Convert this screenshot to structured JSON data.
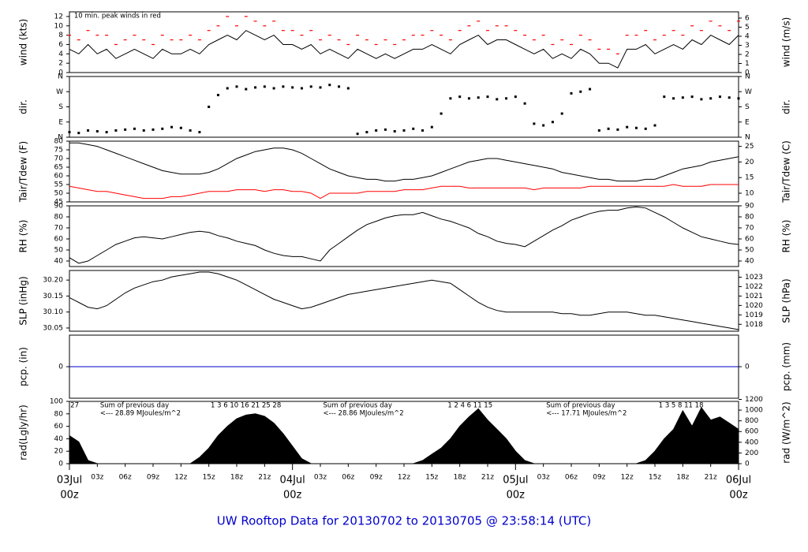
{
  "time_axis": {
    "xlim": [
      0,
      72
    ],
    "x": [
      0,
      1,
      2,
      3,
      4,
      5,
      6,
      7,
      8,
      9,
      10,
      11,
      12,
      13,
      14,
      15,
      16,
      17,
      18,
      19,
      20,
      21,
      22,
      23,
      24,
      25,
      26,
      27,
      28,
      29,
      30,
      31,
      32,
      33,
      34,
      35,
      36,
      37,
      38,
      39,
      40,
      41,
      42,
      43,
      44,
      45,
      46,
      47,
      48,
      49,
      50,
      51,
      52,
      53,
      54,
      55,
      56,
      57,
      58,
      59,
      60,
      61,
      62,
      63,
      64,
      65,
      66,
      67,
      68,
      69,
      70,
      71,
      72
    ],
    "xticks": [
      {
        "value": 3,
        "label": "03z"
      },
      {
        "value": 6,
        "label": "06z"
      },
      {
        "value": 9,
        "label": "09z"
      },
      {
        "value": 12,
        "label": "12z"
      },
      {
        "value": 15,
        "label": "15z"
      },
      {
        "value": 18,
        "label": "18z"
      },
      {
        "value": 21,
        "label": "21z"
      },
      {
        "value": 27,
        "label": "03z"
      },
      {
        "value": 30,
        "label": "06z"
      },
      {
        "value": 33,
        "label": "09z"
      },
      {
        "value": 36,
        "label": "12z"
      },
      {
        "value": 39,
        "label": "15z"
      },
      {
        "value": 42,
        "label": "18z"
      },
      {
        "value": 45,
        "label": "21z"
      },
      {
        "value": 51,
        "label": "03z"
      },
      {
        "value": 54,
        "label": "06z"
      },
      {
        "value": 57,
        "label": "09z"
      },
      {
        "value": 60,
        "label": "12z"
      },
      {
        "value": 63,
        "label": "15z"
      },
      {
        "value": 66,
        "label": "18z"
      },
      {
        "value": 69,
        "label": "21z"
      }
    ],
    "day_ticks": [
      {
        "value": 0,
        "label": "03Jul",
        "hour": "00z"
      },
      {
        "value": 24,
        "label": "04Jul",
        "hour": "00z"
      },
      {
        "value": 48,
        "label": "05Jul",
        "hour": "00z"
      },
      {
        "value": 72,
        "label": "06Jul",
        "hour": "00z"
      }
    ],
    "color": "#ff0000"
  },
  "footer": "UW Rooftop Data for 20130702  to  20130705 @ 23:58:14  (UTC)",
  "chart_data": [
    {
      "type": "line",
      "ylabel": "wind (kts)",
      "y2label": "wind (m/s)",
      "ylim": [
        0,
        13
      ],
      "yticks": [
        0,
        2,
        4,
        6,
        8,
        10,
        12
      ],
      "y2lim": [
        0,
        6.69
      ],
      "y2ticks": [
        0,
        1,
        2,
        3,
        4,
        5,
        6
      ],
      "annotations": [
        {
          "x": 0.5,
          "lines": [
            "10 min. peak winds in red"
          ],
          "color": "#dd0000"
        }
      ],
      "series": [
        {
          "name": "wind",
          "mark": "line",
          "color": "#000000",
          "values": [
            5,
            4,
            6,
            4,
            5,
            3,
            4,
            5,
            4,
            3,
            5,
            4,
            4,
            5,
            4,
            6,
            7,
            8,
            7,
            9,
            8,
            7,
            8,
            6,
            6,
            5,
            6,
            4,
            5,
            4,
            3,
            5,
            4,
            3,
            4,
            3,
            4,
            5,
            5,
            6,
            5,
            4,
            6,
            7,
            8,
            6,
            7,
            7,
            6,
            5,
            4,
            5,
            3,
            4,
            3,
            5,
            4,
            2,
            2,
            1,
            5,
            5,
            6,
            4,
            5,
            6,
            5,
            7,
            6,
            8,
            7,
            6,
            8
          ]
        },
        {
          "name": "peak",
          "mark": "dash",
          "color": "#ff0000",
          "values": [
            8,
            7,
            9,
            8,
            8,
            6,
            7,
            8,
            7,
            6,
            8,
            7,
            7,
            8,
            7,
            9,
            10,
            12,
            10,
            12,
            11,
            10,
            11,
            9,
            9,
            8,
            9,
            7,
            8,
            7,
            6,
            8,
            7,
            6,
            7,
            6,
            7,
            8,
            8,
            9,
            8,
            7,
            9,
            10,
            11,
            9,
            10,
            10,
            9,
            8,
            7,
            8,
            6,
            7,
            6,
            8,
            7,
            5,
            5,
            4,
            8,
            8,
            9,
            7,
            8,
            9,
            8,
            10,
            9,
            11,
            10,
            9,
            11
          ]
        }
      ]
    },
    {
      "type": "scatter",
      "ylabel": "dir.",
      "y2label": "dir.",
      "ylim": [
        0,
        360
      ],
      "yticks": [
        {
          "value": 0,
          "label": "N"
        },
        {
          "value": 90,
          "label": "E"
        },
        {
          "value": 180,
          "label": "S"
        },
        {
          "value": 270,
          "label": "W"
        },
        {
          "value": 360,
          "label": "N"
        }
      ],
      "y2lim": [
        0,
        360
      ],
      "y2ticks": [
        {
          "value": 0,
          "label": "N"
        },
        {
          "value": 90,
          "label": "E"
        },
        {
          "value": 180,
          "label": "S"
        },
        {
          "value": 270,
          "label": "W"
        },
        {
          "value": 360,
          "label": "N"
        }
      ],
      "series": [
        {
          "name": "direction",
          "mark": "dot",
          "color": "#000000",
          "values": [
            30,
            25,
            40,
            35,
            30,
            40,
            45,
            50,
            40,
            45,
            50,
            60,
            55,
            40,
            30,
            180,
            250,
            290,
            300,
            285,
            295,
            300,
            290,
            300,
            295,
            290,
            300,
            295,
            310,
            300,
            290,
            20,
            30,
            40,
            45,
            35,
            40,
            50,
            40,
            60,
            140,
            230,
            240,
            230,
            235,
            240,
            225,
            230,
            240,
            200,
            80,
            70,
            90,
            140,
            260,
            270,
            285,
            40,
            50,
            45,
            60,
            55,
            50,
            70,
            240,
            230,
            235,
            240,
            225,
            230,
            240,
            235,
            230
          ]
        }
      ]
    },
    {
      "type": "line",
      "ylabel": "Tair/Tdew (F)",
      "y2label": "Tair/Tdew (C)",
      "ylim": [
        45,
        80
      ],
      "yticks": [
        45,
        50,
        55,
        60,
        65,
        70,
        75,
        80
      ],
      "y2lim": [
        7.22,
        26.67
      ],
      "y2ticks": [
        10,
        15,
        20,
        25
      ],
      "series": [
        {
          "name": "Tair",
          "mark": "line",
          "color": "#000000",
          "values": [
            79,
            79,
            78,
            77,
            75,
            73,
            71,
            69,
            67,
            65,
            63,
            62,
            61,
            61,
            61,
            62,
            64,
            67,
            70,
            72,
            74,
            75,
            76,
            76,
            75,
            73,
            70,
            67,
            64,
            62,
            60,
            59,
            58,
            58,
            57,
            57,
            58,
            58,
            59,
            60,
            62,
            64,
            66,
            68,
            69,
            70,
            70,
            69,
            68,
            67,
            66,
            65,
            64,
            62,
            61,
            60,
            59,
            58,
            58,
            57,
            57,
            57,
            58,
            58,
            60,
            62,
            64,
            65,
            66,
            68,
            69,
            70,
            71
          ]
        },
        {
          "name": "Tdew",
          "mark": "line",
          "color": "#ff0000",
          "values": [
            54,
            53,
            52,
            51,
            51,
            50,
            49,
            48,
            47,
            47,
            47,
            48,
            48,
            49,
            50,
            51,
            51,
            51,
            52,
            52,
            52,
            51,
            52,
            52,
            51,
            51,
            50,
            47,
            50,
            50,
            50,
            50,
            51,
            51,
            51,
            51,
            52,
            52,
            52,
            53,
            54,
            54,
            54,
            53,
            53,
            53,
            53,
            53,
            53,
            53,
            52,
            53,
            53,
            53,
            53,
            53,
            54,
            54,
            54,
            54,
            54,
            54,
            54,
            54,
            54,
            55,
            54,
            54,
            54,
            55,
            55,
            55,
            55
          ]
        }
      ]
    },
    {
      "type": "line",
      "ylabel": "RH (%)",
      "y2label": "RH (%)",
      "ylim": [
        35,
        90
      ],
      "yticks": [
        40,
        50,
        60,
        70,
        80,
        90
      ],
      "y2lim": [
        35,
        90
      ],
      "y2ticks": [
        40,
        50,
        60,
        70,
        80,
        90
      ],
      "series": [
        {
          "name": "RH",
          "mark": "line",
          "color": "#000000",
          "values": [
            43,
            38,
            40,
            45,
            50,
            55,
            58,
            61,
            62,
            61,
            60,
            62,
            64,
            66,
            67,
            66,
            63,
            61,
            58,
            56,
            54,
            50,
            47,
            45,
            44,
            44,
            42,
            40,
            50,
            56,
            62,
            68,
            73,
            76,
            79,
            81,
            82,
            82,
            84,
            81,
            78,
            76,
            73,
            70,
            65,
            62,
            58,
            56,
            55,
            53,
            58,
            63,
            68,
            72,
            77,
            80,
            83,
            85,
            86,
            86,
            88,
            89,
            88,
            84,
            80,
            75,
            70,
            66,
            62,
            60,
            58,
            56,
            55
          ]
        }
      ]
    },
    {
      "type": "line",
      "ylabel": "SLP (inHg)",
      "y2label": "SLP (hPa)",
      "ylim": [
        30.04,
        30.23
      ],
      "yticks": [
        30.05,
        {
          "value": 30.1,
          "label": "30.10"
        },
        30.15,
        {
          "value": 30.2,
          "label": "30.20"
        }
      ],
      "y2lim": [
        1017.27,
        1023.71
      ],
      "y2ticks": [
        1018,
        1019,
        1020,
        1021,
        1022,
        1023
      ],
      "series": [
        {
          "name": "SLP",
          "mark": "line",
          "color": "#000000",
          "values": [
            30.145,
            30.13,
            30.115,
            30.11,
            30.12,
            30.14,
            30.16,
            30.175,
            30.185,
            30.195,
            30.2,
            30.21,
            30.215,
            30.22,
            30.225,
            30.225,
            30.22,
            30.21,
            30.2,
            30.185,
            30.17,
            30.155,
            30.14,
            30.13,
            30.12,
            30.11,
            30.115,
            30.125,
            30.135,
            30.145,
            30.155,
            30.16,
            30.165,
            30.17,
            30.175,
            30.18,
            30.185,
            30.19,
            30.195,
            30.2,
            30.195,
            30.19,
            30.17,
            30.15,
            30.13,
            30.115,
            30.105,
            30.1,
            30.1,
            30.1,
            30.1,
            30.1,
            30.1,
            30.095,
            30.095,
            30.09,
            30.09,
            30.095,
            30.1,
            30.1,
            30.1,
            30.095,
            30.09,
            30.09,
            30.085,
            30.08,
            30.075,
            30.07,
            30.065,
            30.06,
            30.055,
            30.05,
            30.045
          ]
        }
      ]
    },
    {
      "type": "line",
      "ylabel": "pcp. (in)",
      "y2label": "pcp. (mm)",
      "ylim": [
        -1,
        1
      ],
      "yticks": [
        0
      ],
      "y2lim": [
        -1,
        1
      ],
      "y2ticks": [
        0
      ],
      "series": [
        {
          "name": "pcp",
          "mark": "line",
          "color": "#0000cc",
          "values": [
            0,
            0,
            0,
            0,
            0,
            0,
            0,
            0,
            0,
            0,
            0,
            0,
            0,
            0,
            0,
            0,
            0,
            0,
            0,
            0,
            0,
            0,
            0,
            0,
            0,
            0,
            0,
            0,
            0,
            0,
            0,
            0,
            0,
            0,
            0,
            0,
            0,
            0,
            0,
            0,
            0,
            0,
            0,
            0,
            0,
            0,
            0,
            0,
            0,
            0,
            0,
            0,
            0,
            0,
            0,
            0,
            0,
            0,
            0,
            0,
            0,
            0,
            0,
            0,
            0,
            0,
            0,
            0,
            0,
            0,
            0,
            0,
            0
          ]
        }
      ]
    },
    {
      "type": "area",
      "ylabel": "rad(Lgly/hr)",
      "y2label": "rad (W/m^2)",
      "ylim": [
        0,
        100
      ],
      "yticks": [
        0,
        20,
        40,
        60,
        80,
        100
      ],
      "y2lim": [
        0,
        1163
      ],
      "y2ticks": [
        0,
        200,
        400,
        600,
        800,
        1000,
        1200
      ],
      "annotations": [
        {
          "x": 0.1,
          "lines": [
            "27"
          ],
          "color": "#9900cc"
        },
        {
          "x": 15.2,
          "lines": [
            "1   3   6   10   16   21   25   28"
          ],
          "color": "#9900cc"
        },
        {
          "x": 3.3,
          "lines": [
            "Sum of previous day",
            "<--- 28.89 MJoules/m^2"
          ],
          "color": "#9900cc"
        },
        {
          "x": 27.3,
          "lines": [
            "Sum of previous day",
            "<--- 28.86 MJoules/m^2"
          ],
          "color": "#9900cc"
        },
        {
          "x": 40.7,
          "lines": [
            "1     2     4     6     11     15"
          ],
          "color": "#9900cc"
        },
        {
          "x": 51.3,
          "lines": [
            "Sum of previous day",
            "<--- 17.71 MJoules/m^2"
          ],
          "color": "#9900cc"
        },
        {
          "x": 63.4,
          "lines": [
            "1   3    5    8    11    18"
          ],
          "color": "#9900cc"
        }
      ],
      "series": [
        {
          "name": "rad",
          "mark": "area",
          "color": "#000000",
          "values": [
            45,
            35,
            5,
            0,
            0,
            0,
            0,
            0,
            0,
            0,
            0,
            0,
            0,
            0,
            10,
            25,
            45,
            60,
            72,
            78,
            80,
            76,
            65,
            48,
            28,
            8,
            0,
            0,
            0,
            0,
            0,
            0,
            0,
            0,
            0,
            0,
            0,
            0,
            5,
            15,
            25,
            40,
            60,
            75,
            88,
            70,
            55,
            40,
            20,
            5,
            0,
            0,
            0,
            0,
            0,
            0,
            0,
            0,
            0,
            0,
            0,
            0,
            5,
            20,
            40,
            55,
            85,
            60,
            90,
            70,
            75,
            65,
            55
          ]
        }
      ]
    }
  ]
}
